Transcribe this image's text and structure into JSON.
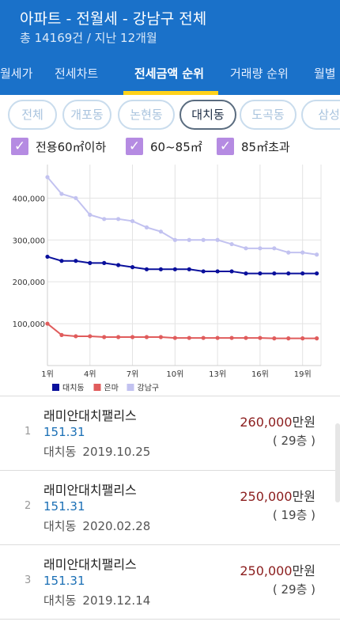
{
  "header": {
    "title": "아파트 - 전월세 - 강남구 전체",
    "subtitle": "총 14169건 / 지난 12개월"
  },
  "tabs": [
    {
      "label": "월세가",
      "active": false
    },
    {
      "label": "전세차트",
      "active": false
    },
    {
      "label": "전세금액 순위",
      "active": true
    },
    {
      "label": "거래량 순위",
      "active": false
    },
    {
      "label": "월별",
      "active": false
    }
  ],
  "chips": [
    {
      "label": "전체",
      "active": false
    },
    {
      "label": "개포동",
      "active": false
    },
    {
      "label": "논현동",
      "active": false
    },
    {
      "label": "대치동",
      "active": true
    },
    {
      "label": "도곡동",
      "active": false
    },
    {
      "label": "삼성",
      "active": false
    }
  ],
  "checks": [
    {
      "label": "전용60㎡이하",
      "checked": true
    },
    {
      "label": "60~85㎡",
      "checked": true
    },
    {
      "label": "85㎡초과",
      "checked": true
    }
  ],
  "chart_data": {
    "type": "line",
    "x": [
      1,
      2,
      3,
      4,
      5,
      6,
      7,
      8,
      9,
      10,
      11,
      12,
      13,
      14,
      15,
      16,
      17,
      18,
      19,
      20
    ],
    "xticks": [
      "1위",
      "4위",
      "7위",
      "10위",
      "13위",
      "16위",
      "19위"
    ],
    "yticks": [
      "100,000",
      "200,000",
      "300,000",
      "400,000"
    ],
    "ylim": [
      0,
      480000
    ],
    "grid": true,
    "legend_position": "bottom-left",
    "series": [
      {
        "name": "대치동",
        "color": "#0a109c",
        "values": [
          260000,
          250000,
          250000,
          245000,
          245000,
          240000,
          235000,
          230000,
          230000,
          230000,
          230000,
          225000,
          225000,
          225000,
          220000,
          220000,
          220000,
          220000,
          220000,
          220000
        ]
      },
      {
        "name": "은마",
        "color": "#e05c5c",
        "values": [
          100000,
          73000,
          70000,
          70000,
          68000,
          68000,
          68000,
          68000,
          68000,
          66000,
          66000,
          66000,
          66000,
          66000,
          66000,
          66000,
          65000,
          65000,
          65000,
          65000
        ]
      },
      {
        "name": "강남구",
        "color": "#c2c2f0",
        "values": [
          450000,
          410000,
          400000,
          360000,
          350000,
          350000,
          345000,
          330000,
          320000,
          300000,
          300000,
          300000,
          300000,
          290000,
          280000,
          280000,
          280000,
          270000,
          270000,
          265000
        ]
      }
    ]
  },
  "listings": [
    {
      "rank": "1",
      "name": "래미안대치팰리스",
      "area": "151.31",
      "dong": "대치동",
      "date": "2019.10.25",
      "price": "260,000",
      "unit": "만원",
      "floor": "( 29층 )"
    },
    {
      "rank": "2",
      "name": "래미안대치팰리스",
      "area": "151.31",
      "dong": "대치동",
      "date": "2020.02.28",
      "price": "250,000",
      "unit": "만원",
      "floor": "( 19층 )"
    },
    {
      "rank": "3",
      "name": "래미안대치팰리스",
      "area": "151.31",
      "dong": "대치동",
      "date": "2019.12.14",
      "price": "250,000",
      "unit": "만원",
      "floor": "( 29층 )"
    }
  ]
}
